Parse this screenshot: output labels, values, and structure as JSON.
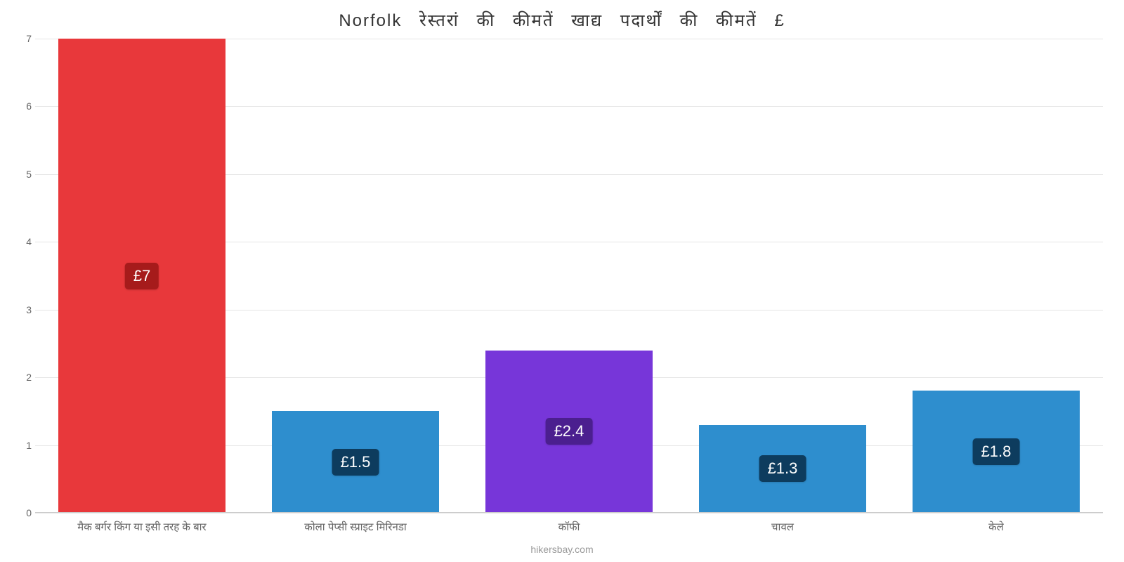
{
  "chart": {
    "type": "bar",
    "title": "Norfolk रेस्तरां की कीमतें खाद्य पदार्थों की कीमतें £",
    "title_fontsize": 24,
    "title_color": "#333333",
    "background_color": "#ffffff",
    "grid_color": "#e6e6e6",
    "axis_line_color": "#cccccc",
    "xlabel_fontsize": 15,
    "xlabel_color": "#666666",
    "ytick_fontsize": 14,
    "ytick_color": "#666666",
    "ylim": [
      0,
      7
    ],
    "ytick_step": 1,
    "yticks": [
      0,
      1,
      2,
      3,
      4,
      5,
      6,
      7
    ],
    "bar_width_pct": 78,
    "value_label_fontsize": 22,
    "value_label_text_color": "#ffffff",
    "value_label_radius": 5,
    "categories": [
      "मैक बर्गर किंग या इसी तरह के बार",
      "कोला पेप्सी स्प्राइट मिरिनडा",
      "कॉफी",
      "चावल",
      "केले"
    ],
    "values": [
      7,
      1.5,
      2.4,
      1.3,
      1.8
    ],
    "value_labels": [
      "£7",
      "£1.5",
      "£2.4",
      "£1.3",
      "£1.8"
    ],
    "bar_colors": [
      "#e8383b",
      "#2e8ece",
      "#7736d9",
      "#2e8ece",
      "#2e8ece"
    ],
    "badge_colors": [
      "#a61b1b",
      "#0d3c5e",
      "#4b1f8f",
      "#0d3c5e",
      "#0d3c5e"
    ]
  },
  "attribution": "hikersbay.com"
}
